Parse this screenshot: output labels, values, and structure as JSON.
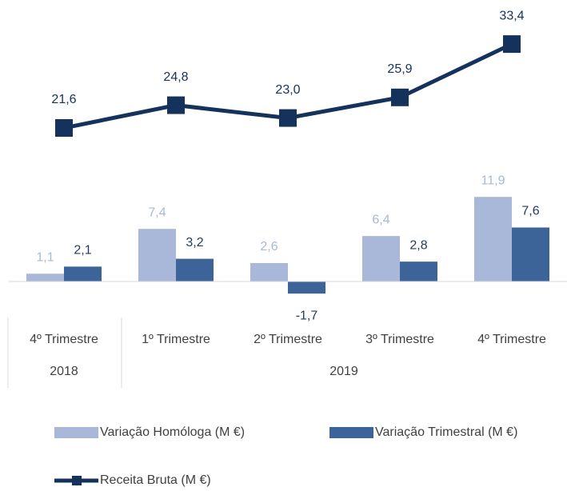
{
  "chart_data": {
    "type": "bar-line",
    "categories": [
      "4º Trimestre",
      "1º Trimestre",
      "2º Trimestre",
      "3º Trimestre",
      "4º Trimestre"
    ],
    "category_groups": [
      {
        "label": "2018",
        "span": 1
      },
      {
        "label": "2019",
        "span": 4
      }
    ],
    "ylim": [
      -4,
      36
    ],
    "series": [
      {
        "name": "Variação Homóloga (M €)",
        "type": "bar",
        "color": "#a9b8d8",
        "label_color": "#a9b8d8",
        "values": [
          1.1,
          7.4,
          2.6,
          6.4,
          11.9
        ],
        "value_labels": [
          "1,1",
          "7,4",
          "2,6",
          "6,4",
          "11,9"
        ]
      },
      {
        "name": "Variação Trimestral (M €)",
        "type": "bar",
        "color": "#3d6499",
        "label_color": "#1f3a5f",
        "values": [
          2.1,
          3.2,
          -1.7,
          2.8,
          7.6
        ],
        "value_labels": [
          "2,1",
          "3,2",
          "-1,7",
          "2,8",
          "7,6"
        ]
      },
      {
        "name": "Receita Bruta (M €)",
        "type": "line",
        "color": "#14325c",
        "label_color": "#14325c",
        "values": [
          21.6,
          24.8,
          23.0,
          25.9,
          33.4
        ],
        "value_labels": [
          "21,6",
          "24,8",
          "23,0",
          "25,9",
          "33,4"
        ]
      }
    ]
  }
}
